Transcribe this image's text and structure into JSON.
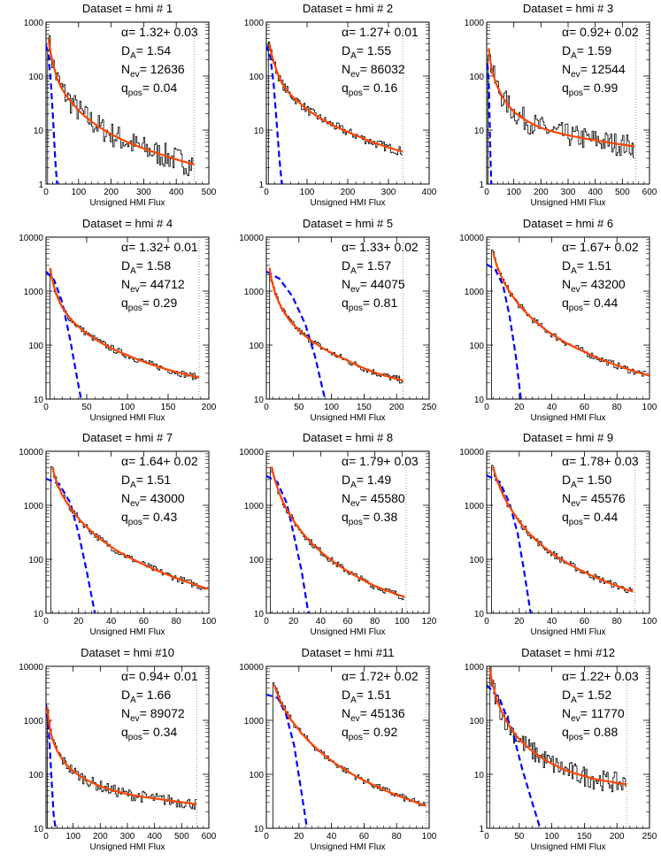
{
  "common": {
    "xlabel": "Unsigned HMI Flux",
    "colors": {
      "histogram": "#000000",
      "fit_line": "#ff4500",
      "gaussian": "#0000ff",
      "cutoff_line": "#808080"
    },
    "label_templates": {
      "alpha": "α= {v}+ {e}",
      "da": "D",
      "da_sub": "A",
      "nev": "N",
      "nev_sub": "ev",
      "qpos": "q",
      "qpos_sub": "pos"
    }
  },
  "chart_data": [
    {
      "type": "line",
      "title": "Dataset = hmi # 1",
      "xlabel": "Unsigned HMI Flux",
      "yscale": "log",
      "xlim": [
        0,
        500
      ],
      "ylim": [
        1,
        1000
      ],
      "xticks": [
        0,
        100,
        200,
        300,
        400,
        500
      ],
      "yticks": [
        1,
        10,
        100,
        1000
      ],
      "annotations": {
        "alpha": "1.32",
        "alpha_err": "0.03",
        "da": "1.54",
        "nev": "12636",
        "qpos": "0.04"
      },
      "series": [
        {
          "kind": "power-law fit",
          "x": [
            8,
            20,
            40,
            80,
            150,
            250,
            350,
            455
          ],
          "y": [
            500,
            190,
            75,
            32,
            13,
            6,
            3.6,
            2.3
          ]
        },
        {
          "kind": "gaussian",
          "x": [
            0,
            8,
            15,
            22,
            28,
            34
          ],
          "y": [
            380,
            230,
            75,
            15,
            3,
            1
          ]
        },
        {
          "kind": "histogram",
          "x": [
            5,
            455
          ],
          "y": [
            420,
            2.3
          ],
          "noise": 0.55
        }
      ],
      "cutoff_x": 455
    },
    {
      "type": "line",
      "title": "Dataset = hmi # 2",
      "xlabel": "Unsigned HMI Flux",
      "yscale": "log",
      "xlim": [
        0,
        400
      ],
      "ylim": [
        1,
        1000
      ],
      "xticks": [
        0,
        100,
        200,
        300,
        400
      ],
      "yticks": [
        1,
        10,
        100,
        1000
      ],
      "annotations": {
        "alpha": "1.27",
        "alpha_err": "0.01",
        "da": "1.55",
        "nev": "86032",
        "qpos": "0.16"
      },
      "series": [
        {
          "kind": "power-law fit",
          "x": [
            8,
            20,
            40,
            80,
            150,
            220,
            290,
            335
          ],
          "y": [
            400,
            170,
            70,
            33,
            14,
            8,
            5,
            4
          ]
        },
        {
          "kind": "gaussian",
          "x": [
            0,
            10,
            18,
            25,
            32,
            38
          ],
          "y": [
            380,
            220,
            70,
            15,
            3,
            1
          ]
        },
        {
          "kind": "histogram",
          "x": [
            5,
            335
          ],
          "y": [
            380,
            4
          ],
          "noise": 0.2
        }
      ],
      "cutoff_x": 335
    },
    {
      "type": "line",
      "title": "Dataset = hmi # 3",
      "xlabel": "Unsigned HMI Flux",
      "yscale": "log",
      "xlim": [
        0,
        600
      ],
      "ylim": [
        1,
        1000
      ],
      "xticks": [
        0,
        100,
        200,
        300,
        400,
        500,
        600
      ],
      "yticks": [
        1,
        10,
        100,
        1000
      ],
      "annotations": {
        "alpha": "0.92",
        "alpha_err": "0.02",
        "da": "1.59",
        "nev": "12544",
        "qpos": "0.99"
      },
      "series": [
        {
          "kind": "power-law fit",
          "x": [
            8,
            20,
            50,
            100,
            200,
            300,
            400,
            545
          ],
          "y": [
            330,
            130,
            50,
            22,
            11,
            8,
            6.5,
            5
          ]
        },
        {
          "kind": "gaussian",
          "x": [
            0,
            4,
            8,
            11,
            14,
            17
          ],
          "y": [
            170,
            150,
            60,
            15,
            3,
            1
          ]
        },
        {
          "kind": "histogram",
          "x": [
            5,
            545
          ],
          "y": [
            200,
            5
          ],
          "noise": 0.5
        }
      ],
      "cutoff_x": 550
    },
    {
      "type": "line",
      "title": "Dataset = hmi # 4",
      "xlabel": "Unsigned HMI Flux",
      "yscale": "log",
      "xlim": [
        0,
        200
      ],
      "ylim": [
        10,
        10000
      ],
      "xticks": [
        0,
        50,
        100,
        150,
        200
      ],
      "yticks": [
        10,
        100,
        1000,
        10000
      ],
      "annotations": {
        "alpha": "1.32",
        "alpha_err": "0.01",
        "da": "1.58",
        "nev": "44712",
        "qpos": "0.29"
      },
      "series": [
        {
          "kind": "power-law fit",
          "x": [
            5,
            10,
            20,
            40,
            60,
            100,
            150,
            188
          ],
          "y": [
            2700,
            1200,
            500,
            220,
            130,
            65,
            35,
            25
          ]
        },
        {
          "kind": "gaussian",
          "x": [
            0,
            10,
            20,
            30,
            38,
            43
          ],
          "y": [
            2300,
            1600,
            620,
            120,
            25,
            10
          ]
        },
        {
          "kind": "histogram",
          "x": [
            5,
            188
          ],
          "y": [
            2400,
            25
          ],
          "noise": 0.15
        }
      ],
      "cutoff_x": 188
    },
    {
      "type": "line",
      "title": "Dataset = hmi # 5",
      "xlabel": "Unsigned HMI Flux",
      "yscale": "log",
      "xlim": [
        0,
        250
      ],
      "ylim": [
        10,
        10000
      ],
      "xticks": [
        0,
        50,
        100,
        150,
        200,
        250
      ],
      "yticks": [
        10,
        100,
        1000,
        10000
      ],
      "annotations": {
        "alpha": "1.33",
        "alpha_err": "0.02",
        "da": "1.57",
        "nev": "44075",
        "qpos": "0.81"
      },
      "series": [
        {
          "kind": "power-law fit",
          "x": [
            5,
            10,
            20,
            40,
            70,
            120,
            170,
            210
          ],
          "y": [
            2700,
            1300,
            600,
            250,
            120,
            55,
            30,
            22
          ]
        },
        {
          "kind": "gaussian",
          "x": [
            0,
            20,
            40,
            60,
            75,
            90
          ],
          "y": [
            2300,
            1700,
            800,
            240,
            60,
            10
          ]
        },
        {
          "kind": "histogram",
          "x": [
            5,
            210
          ],
          "y": [
            2400,
            20
          ],
          "noise": 0.15
        }
      ],
      "cutoff_x": 210
    },
    {
      "type": "line",
      "title": "Dataset = hmi # 6",
      "xlabel": "Unsigned HMI Flux",
      "yscale": "log",
      "xlim": [
        0,
        100
      ],
      "ylim": [
        10,
        10000
      ],
      "xticks": [
        0,
        20,
        40,
        60,
        80,
        100
      ],
      "yticks": [
        10,
        100,
        1000,
        10000
      ],
      "annotations": {
        "alpha": "1.67",
        "alpha_err": "0.02",
        "da": "1.51",
        "nev": "43200",
        "qpos": "0.44"
      },
      "series": [
        {
          "kind": "power-law fit",
          "x": [
            4,
            8,
            15,
            25,
            40,
            60,
            80,
            100
          ],
          "y": [
            5200,
            2200,
            900,
            380,
            160,
            75,
            42,
            27
          ]
        },
        {
          "kind": "gaussian",
          "x": [
            0,
            5,
            10,
            14,
            18,
            21
          ],
          "y": [
            3100,
            2600,
            1300,
            350,
            60,
            10
          ]
        },
        {
          "kind": "histogram",
          "x": [
            3,
            98
          ],
          "y": [
            3100,
            28
          ],
          "noise": 0.15
        }
      ],
      "cutoff_x": 100
    },
    {
      "type": "line",
      "title": "Dataset = hmi # 7",
      "xlabel": "Unsigned HMI Flux",
      "yscale": "log",
      "xlim": [
        0,
        100
      ],
      "ylim": [
        10,
        10000
      ],
      "xticks": [
        0,
        20,
        40,
        60,
        80,
        100
      ],
      "yticks": [
        10,
        100,
        1000,
        10000
      ],
      "annotations": {
        "alpha": "1.64",
        "alpha_err": "0.02",
        "da": "1.51",
        "nev": "43000",
        "qpos": "0.43"
      },
      "series": [
        {
          "kind": "power-law fit",
          "x": [
            4,
            8,
            15,
            25,
            40,
            60,
            80,
            100
          ],
          "y": [
            5000,
            2100,
            900,
            400,
            170,
            80,
            45,
            28
          ]
        },
        {
          "kind": "gaussian",
          "x": [
            0,
            8,
            15,
            20,
            25,
            30
          ],
          "y": [
            3100,
            2500,
            1100,
            300,
            60,
            10
          ]
        },
        {
          "kind": "histogram",
          "x": [
            3,
            98
          ],
          "y": [
            3000,
            30
          ],
          "noise": 0.15
        }
      ],
      "cutoff_x": 100
    },
    {
      "type": "line",
      "title": "Dataset = hmi # 8",
      "xlabel": "Unsigned HMI Flux",
      "yscale": "log",
      "xlim": [
        0,
        120
      ],
      "ylim": [
        10,
        10000
      ],
      "xticks": [
        0,
        20,
        40,
        60,
        80,
        100,
        120
      ],
      "yticks": [
        10,
        100,
        1000,
        10000
      ],
      "annotations": {
        "alpha": "1.79",
        "alpha_err": "0.03",
        "da": "1.49",
        "nev": "45580",
        "qpos": "0.38"
      },
      "series": [
        {
          "kind": "power-law fit",
          "x": [
            4,
            8,
            15,
            25,
            40,
            60,
            80,
            102
          ],
          "y": [
            5200,
            2200,
            850,
            350,
            140,
            60,
            32,
            20
          ]
        },
        {
          "kind": "gaussian",
          "x": [
            0,
            8,
            15,
            20,
            26,
            31
          ],
          "y": [
            3500,
            2700,
            1100,
            300,
            60,
            10
          ]
        },
        {
          "kind": "histogram",
          "x": [
            3,
            102
          ],
          "y": [
            3300,
            22
          ],
          "noise": 0.15
        }
      ],
      "cutoff_x": 103
    },
    {
      "type": "line",
      "title": "Dataset = hmi # 9",
      "xlabel": "Unsigned HMI Flux",
      "yscale": "log",
      "xlim": [
        0,
        100
      ],
      "ylim": [
        10,
        10000
      ],
      "xticks": [
        0,
        20,
        40,
        60,
        80,
        100
      ],
      "yticks": [
        10,
        100,
        1000,
        10000
      ],
      "annotations": {
        "alpha": "1.78",
        "alpha_err": "0.03",
        "da": "1.50",
        "nev": "45576",
        "qpos": "0.44"
      },
      "series": [
        {
          "kind": "power-law fit",
          "x": [
            4,
            8,
            15,
            25,
            40,
            60,
            80,
            90
          ],
          "y": [
            5200,
            2200,
            850,
            330,
            130,
            58,
            32,
            25
          ]
        },
        {
          "kind": "gaussian",
          "x": [
            0,
            8,
            14,
            19,
            23,
            27
          ],
          "y": [
            3600,
            2700,
            1100,
            300,
            60,
            10
          ]
        },
        {
          "kind": "histogram",
          "x": [
            3,
            90
          ],
          "y": [
            3400,
            25
          ],
          "noise": 0.15
        }
      ],
      "cutoff_x": 91
    },
    {
      "type": "line",
      "title": "Dataset = hmi #10",
      "xlabel": "Unsigned HMI Flux",
      "yscale": "log",
      "xlim": [
        0,
        600
      ],
      "ylim": [
        10,
        10000
      ],
      "xticks": [
        0,
        100,
        200,
        300,
        400,
        500,
        600
      ],
      "yticks": [
        10,
        100,
        1000,
        10000
      ],
      "annotations": {
        "alpha": "0.94",
        "alpha_err": "0.01",
        "da": "1.66",
        "nev": "89072",
        "qpos": "0.34"
      },
      "series": [
        {
          "kind": "power-law fit",
          "x": [
            5,
            15,
            40,
            100,
            200,
            300,
            450,
            555
          ],
          "y": [
            1800,
            700,
            280,
            115,
            60,
            43,
            33,
            28
          ]
        },
        {
          "kind": "gaussian",
          "x": [
            0,
            8,
            15,
            22,
            28,
            35
          ],
          "y": [
            2000,
            900,
            250,
            60,
            18,
            10
          ]
        },
        {
          "kind": "histogram",
          "x": [
            5,
            555
          ],
          "y": [
            1800,
            28
          ],
          "noise": 0.25
        }
      ],
      "cutoff_x": 555
    },
    {
      "type": "line",
      "title": "Dataset = hmi #11",
      "xlabel": "Unsigned HMI Flux",
      "yscale": "log",
      "xlim": [
        0,
        100
      ],
      "ylim": [
        10,
        10000
      ],
      "xticks": [
        0,
        20,
        40,
        60,
        80,
        100
      ],
      "yticks": [
        10,
        100,
        1000,
        10000
      ],
      "annotations": {
        "alpha": "1.72",
        "alpha_err": "0.02",
        "da": "1.51",
        "nev": "45136",
        "qpos": "0.92"
      },
      "series": [
        {
          "kind": "power-law fit",
          "x": [
            5,
            10,
            18,
            30,
            45,
            65,
            85,
            98
          ],
          "y": [
            4500,
            1900,
            800,
            320,
            140,
            65,
            36,
            26
          ]
        },
        {
          "kind": "gaussian",
          "x": [
            0,
            7,
            12,
            17,
            21,
            25
          ],
          "y": [
            3000,
            2600,
            1300,
            350,
            60,
            10
          ]
        },
        {
          "kind": "histogram",
          "x": [
            4,
            98
          ],
          "y": [
            3200,
            26
          ],
          "noise": 0.15
        }
      ],
      "cutoff_x": 98
    },
    {
      "type": "line",
      "title": "Dataset = hmi #12",
      "xlabel": "Unsigned HMI Flux",
      "yscale": "log",
      "xlim": [
        0,
        250
      ],
      "ylim": [
        1,
        1000
      ],
      "xticks": [
        0,
        50,
        100,
        150,
        200,
        250
      ],
      "yticks": [
        1,
        10,
        100,
        1000
      ],
      "annotations": {
        "alpha": "1.22",
        "alpha_err": "0.03",
        "da": "1.52",
        "nev": "11770",
        "qpos": "0.88"
      },
      "series": [
        {
          "kind": "power-law fit",
          "x": [
            5,
            12,
            25,
            50,
            80,
            120,
            170,
            215
          ],
          "y": [
            900,
            350,
            130,
            45,
            22,
            12,
            8,
            6.5
          ]
        },
        {
          "kind": "gaussian",
          "x": [
            0,
            20,
            40,
            55,
            70,
            82
          ],
          "y": [
            450,
            250,
            60,
            12,
            3,
            1
          ]
        },
        {
          "kind": "histogram",
          "x": [
            5,
            215
          ],
          "y": [
            700,
            7
          ],
          "noise": 0.45
        }
      ],
      "cutoff_x": 215
    }
  ]
}
